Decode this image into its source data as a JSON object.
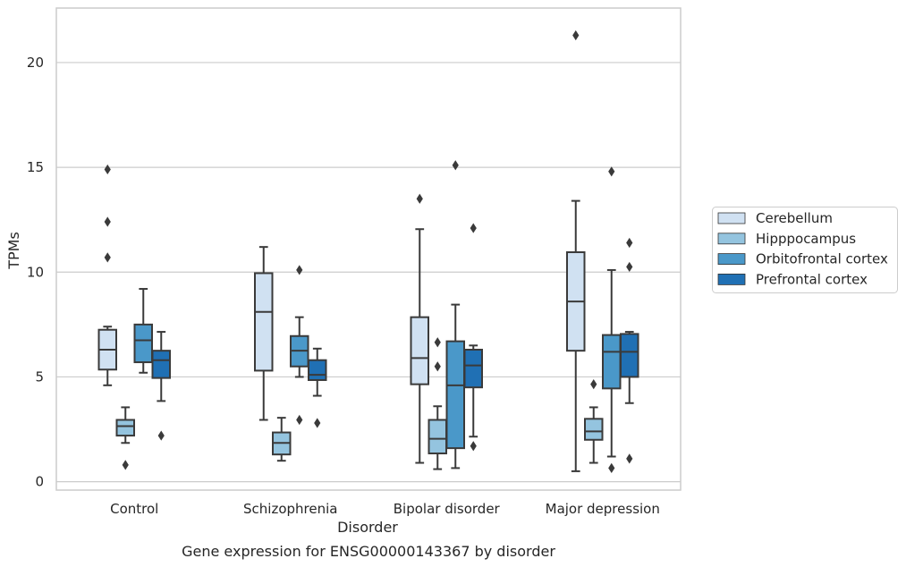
{
  "chart_data": {
    "type": "box",
    "caption": "Gene expression for ENSG00000143367 by disorder",
    "xlabel": "Disorder",
    "ylabel": "TPMs",
    "ylim": [
      -0.4,
      22.6
    ],
    "yticks": [
      0,
      5,
      10,
      15,
      20
    ],
    "grid": true,
    "legend_position": "right",
    "categories": [
      "Control",
      "Schizophrenia",
      "Bipolar disorder",
      "Major depression"
    ],
    "series": [
      {
        "name": "Cerebellum",
        "color": "#d0e1f2",
        "boxes": [
          {
            "whislo": 4.6,
            "q1": 5.35,
            "med": 6.3,
            "q3": 7.25,
            "whishi": 7.4,
            "fliers": [
              14.9,
              12.4,
              10.7
            ]
          },
          {
            "whislo": 2.95,
            "q1": 5.3,
            "med": 8.1,
            "q3": 9.95,
            "whishi": 11.2,
            "fliers": []
          },
          {
            "whislo": 0.9,
            "q1": 4.65,
            "med": 5.9,
            "q3": 7.85,
            "whishi": 12.05,
            "fliers": [
              13.5
            ]
          },
          {
            "whislo": 0.5,
            "q1": 6.25,
            "med": 8.6,
            "q3": 10.95,
            "whishi": 13.4,
            "fliers": [
              21.3
            ]
          }
        ]
      },
      {
        "name": "Hipppocampus",
        "color": "#94c4df",
        "boxes": [
          {
            "whislo": 1.85,
            "q1": 2.2,
            "med": 2.65,
            "q3": 2.95,
            "whishi": 3.55,
            "fliers": [
              0.8
            ]
          },
          {
            "whislo": 1.0,
            "q1": 1.3,
            "med": 1.85,
            "q3": 2.35,
            "whishi": 3.05,
            "fliers": []
          },
          {
            "whislo": 0.6,
            "q1": 1.35,
            "med": 2.05,
            "q3": 2.95,
            "whishi": 3.6,
            "fliers": [
              6.65,
              5.5
            ]
          },
          {
            "whislo": 0.9,
            "q1": 2.0,
            "med": 2.4,
            "q3": 3.0,
            "whishi": 3.55,
            "fliers": [
              4.65
            ]
          }
        ]
      },
      {
        "name": "Orbitofrontal cortex",
        "color": "#4a98c9",
        "boxes": [
          {
            "whislo": 5.2,
            "q1": 5.7,
            "med": 6.75,
            "q3": 7.5,
            "whishi": 9.2,
            "fliers": []
          },
          {
            "whislo": 5.0,
            "q1": 5.5,
            "med": 6.25,
            "q3": 6.95,
            "whishi": 7.85,
            "fliers": [
              10.1,
              2.95
            ]
          },
          {
            "whislo": 0.65,
            "q1": 1.6,
            "med": 4.6,
            "q3": 6.7,
            "whishi": 8.45,
            "fliers": [
              15.1
            ]
          },
          {
            "whislo": 1.2,
            "q1": 4.45,
            "med": 6.2,
            "q3": 7.0,
            "whishi": 10.1,
            "fliers": [
              14.8,
              0.65
            ]
          }
        ]
      },
      {
        "name": "Prefrontal cortex",
        "color": "#2070b4",
        "boxes": [
          {
            "whislo": 3.85,
            "q1": 4.95,
            "med": 5.8,
            "q3": 6.25,
            "whishi": 7.15,
            "fliers": [
              2.2
            ]
          },
          {
            "whislo": 4.1,
            "q1": 4.85,
            "med": 5.1,
            "q3": 5.8,
            "whishi": 6.35,
            "fliers": [
              2.8
            ]
          },
          {
            "whislo": 2.15,
            "q1": 4.5,
            "med": 5.55,
            "q3": 6.3,
            "whishi": 6.5,
            "fliers": [
              12.1,
              1.7
            ]
          },
          {
            "whislo": 3.75,
            "q1": 5.0,
            "med": 6.2,
            "q3": 7.05,
            "whishi": 7.15,
            "fliers": [
              11.4,
              10.25,
              1.1
            ]
          }
        ]
      }
    ]
  }
}
